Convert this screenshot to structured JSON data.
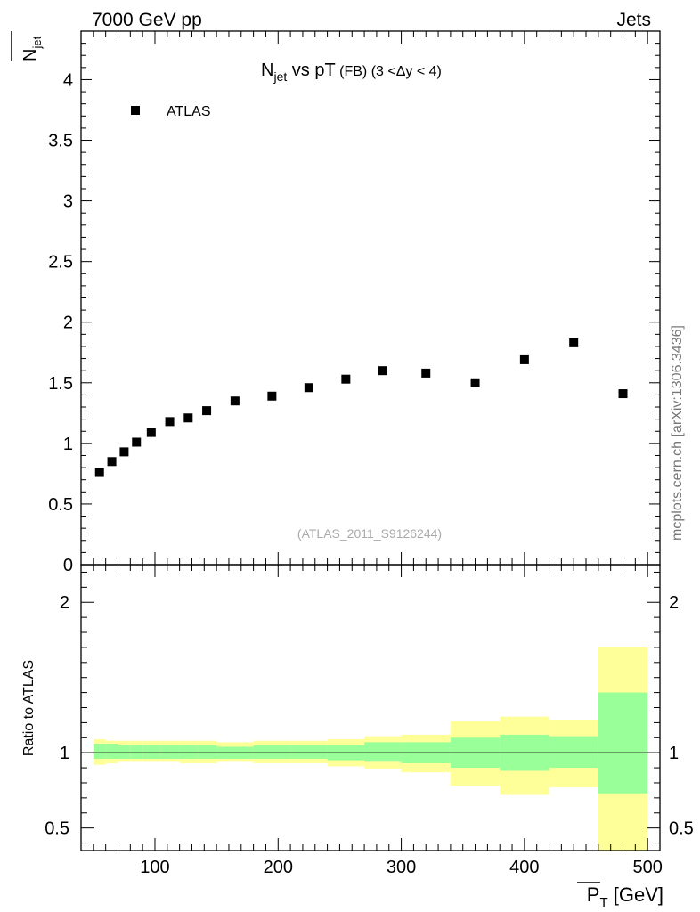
{
  "header": {
    "energy_label": "7000 GeV pp",
    "category_label": "Jets"
  },
  "side_label": "mcplots.cern.ch [arXiv:1306.3436]",
  "chart_data": [
    {
      "type": "scatter",
      "title_main": "N",
      "title_sub": "jet",
      "title_rest": " vs pT",
      "title_small": " (FB) (3 <Δy < 4)",
      "ylabel_main": "N",
      "ylabel_sub": "jet",
      "watermark": "(ATLAS_2011_S9126244)",
      "legend": {
        "label": "ATLAS",
        "position": "top-left"
      },
      "xlim": [
        40,
        510
      ],
      "ylim": [
        0,
        4.4
      ],
      "yticks": [
        0,
        0.5,
        1,
        1.5,
        2,
        2.5,
        3,
        3.5,
        4
      ],
      "ytick_labels": [
        "0",
        "0.5",
        "1",
        "1.5",
        "2",
        "2.5",
        "3",
        "3.5",
        "4"
      ],
      "series": [
        {
          "name": "ATLAS",
          "x": [
            55,
            65,
            75,
            85,
            97,
            112,
            127,
            142,
            165,
            195,
            225,
            255,
            285,
            320,
            360,
            400,
            440,
            480
          ],
          "y": [
            0.76,
            0.85,
            0.93,
            1.01,
            1.09,
            1.18,
            1.21,
            1.27,
            1.35,
            1.39,
            1.46,
            1.53,
            1.6,
            1.58,
            1.5,
            1.69,
            1.83,
            1.41
          ]
        }
      ]
    },
    {
      "type": "area",
      "ylabel": "Ratio to ATLAS",
      "xlabel_main": "P",
      "xlabel_sub": "T",
      "xlabel_unit": " [GeV]",
      "xlim": [
        40,
        510
      ],
      "ylim": [
        0.35,
        2.25
      ],
      "yticks": [
        0.5,
        1,
        2
      ],
      "ytick_labels": [
        "0.5",
        "1",
        "2"
      ],
      "xticks": [
        100,
        200,
        300,
        400,
        500
      ],
      "xtick_labels": [
        "100",
        "200",
        "300",
        "400",
        "500"
      ],
      "reference_line": 1,
      "bins": [
        {
          "x0": 50,
          "x1": 60,
          "inner": [
            0.96,
            1.06
          ],
          "outer": [
            0.92,
            1.09
          ]
        },
        {
          "x0": 60,
          "x1": 70,
          "inner": [
            0.96,
            1.06
          ],
          "outer": [
            0.93,
            1.08
          ]
        },
        {
          "x0": 70,
          "x1": 80,
          "inner": [
            0.96,
            1.05
          ],
          "outer": [
            0.94,
            1.08
          ]
        },
        {
          "x0": 80,
          "x1": 90,
          "inner": [
            0.96,
            1.05
          ],
          "outer": [
            0.94,
            1.08
          ]
        },
        {
          "x0": 90,
          "x1": 105,
          "inner": [
            0.96,
            1.05
          ],
          "outer": [
            0.94,
            1.08
          ]
        },
        {
          "x0": 105,
          "x1": 120,
          "inner": [
            0.96,
            1.05
          ],
          "outer": [
            0.94,
            1.08
          ]
        },
        {
          "x0": 120,
          "x1": 135,
          "inner": [
            0.96,
            1.05
          ],
          "outer": [
            0.93,
            1.08
          ]
        },
        {
          "x0": 135,
          "x1": 150,
          "inner": [
            0.96,
            1.05
          ],
          "outer": [
            0.93,
            1.08
          ]
        },
        {
          "x0": 150,
          "x1": 180,
          "inner": [
            0.96,
            1.04
          ],
          "outer": [
            0.94,
            1.07
          ]
        },
        {
          "x0": 180,
          "x1": 210,
          "inner": [
            0.96,
            1.05
          ],
          "outer": [
            0.93,
            1.08
          ]
        },
        {
          "x0": 210,
          "x1": 240,
          "inner": [
            0.96,
            1.05
          ],
          "outer": [
            0.93,
            1.08
          ]
        },
        {
          "x0": 240,
          "x1": 270,
          "inner": [
            0.95,
            1.05
          ],
          "outer": [
            0.91,
            1.09
          ]
        },
        {
          "x0": 270,
          "x1": 300,
          "inner": [
            0.94,
            1.07
          ],
          "outer": [
            0.89,
            1.11
          ]
        },
        {
          "x0": 300,
          "x1": 340,
          "inner": [
            0.93,
            1.07
          ],
          "outer": [
            0.87,
            1.12
          ]
        },
        {
          "x0": 340,
          "x1": 380,
          "inner": [
            0.9,
            1.1
          ],
          "outer": [
            0.78,
            1.21
          ]
        },
        {
          "x0": 380,
          "x1": 420,
          "inner": [
            0.88,
            1.12
          ],
          "outer": [
            0.72,
            1.24
          ]
        },
        {
          "x0": 420,
          "x1": 460,
          "inner": [
            0.9,
            1.11
          ],
          "outer": [
            0.77,
            1.22
          ]
        },
        {
          "x0": 460,
          "x1": 500,
          "inner": [
            0.73,
            1.4
          ],
          "outer": [
            0.33,
            1.7
          ]
        }
      ]
    }
  ],
  "colors": {
    "marker": "#000000",
    "inner_band": "#99ff99",
    "outer_band": "#ffff99",
    "watermark": "#aaaaaa",
    "side_label": "#777777"
  }
}
